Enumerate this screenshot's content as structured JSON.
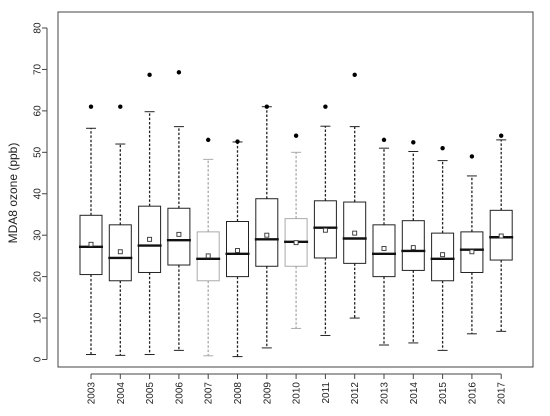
{
  "chart_data": {
    "type": "box",
    "ylabel": "MDA8 ozone (ppb)",
    "xlabel": "",
    "ylim": [
      0,
      80
    ],
    "yticks": [
      0,
      10,
      20,
      30,
      40,
      50,
      60,
      70,
      80
    ],
    "grid": false,
    "box_colors": {
      "default": "#222222",
      "light": "#aaaaaa"
    },
    "categories": [
      "2003",
      "2004",
      "2005",
      "2006",
      "2007",
      "2008",
      "2009",
      "2010",
      "2011",
      "2012",
      "2013",
      "2014",
      "2015",
      "2016",
      "2017"
    ],
    "boxes": [
      {
        "year": "2003",
        "whisker_low": 1.2,
        "q1": 20.5,
        "median": 27.2,
        "q3": 34.8,
        "whisker_high": 55.8,
        "mean": 27.8,
        "outliers": [
          61.0
        ],
        "light": false
      },
      {
        "year": "2004",
        "whisker_low": 1.0,
        "q1": 19.0,
        "median": 24.5,
        "q3": 32.5,
        "whisker_high": 52.0,
        "mean": 26.0,
        "outliers": [
          61.0
        ],
        "light": false
      },
      {
        "year": "2005",
        "whisker_low": 1.2,
        "q1": 21.0,
        "median": 27.5,
        "q3": 37.0,
        "whisker_high": 59.8,
        "mean": 29.0,
        "outliers": [
          68.7
        ],
        "light": false
      },
      {
        "year": "2006",
        "whisker_low": 2.2,
        "q1": 22.8,
        "median": 28.8,
        "q3": 36.5,
        "whisker_high": 56.2,
        "mean": 30.2,
        "outliers": [
          69.3
        ],
        "light": false
      },
      {
        "year": "2007",
        "whisker_low": 0.9,
        "q1": 19.0,
        "median": 24.3,
        "q3": 30.8,
        "whisker_high": 48.3,
        "mean": 25.0,
        "outliers": [
          53.0
        ],
        "light": true
      },
      {
        "year": "2008",
        "whisker_low": 0.7,
        "q1": 20.0,
        "median": 25.5,
        "q3": 33.3,
        "whisker_high": 52.5,
        "mean": 26.3,
        "outliers": [
          52.6
        ],
        "light": false
      },
      {
        "year": "2009",
        "whisker_low": 2.8,
        "q1": 22.5,
        "median": 29.0,
        "q3": 38.8,
        "whisker_high": 61.0,
        "mean": 30.0,
        "outliers": [
          61.0
        ],
        "light": false
      },
      {
        "year": "2010",
        "whisker_low": 7.5,
        "q1": 22.5,
        "median": 28.4,
        "q3": 34.0,
        "whisker_high": 50.0,
        "mean": 28.2,
        "outliers": [
          54.0
        ],
        "light": true
      },
      {
        "year": "2011",
        "whisker_low": 5.8,
        "q1": 24.5,
        "median": 31.8,
        "q3": 38.3,
        "whisker_high": 56.3,
        "mean": 31.2,
        "outliers": [
          61.0
        ],
        "light": false
      },
      {
        "year": "2012",
        "whisker_low": 10.0,
        "q1": 23.2,
        "median": 29.2,
        "q3": 38.0,
        "whisker_high": 56.2,
        "mean": 30.5,
        "outliers": [
          68.7
        ],
        "light": false
      },
      {
        "year": "2013",
        "whisker_low": 3.5,
        "q1": 20.0,
        "median": 25.5,
        "q3": 32.5,
        "whisker_high": 51.0,
        "mean": 26.8,
        "outliers": [
          53.0
        ],
        "light": false
      },
      {
        "year": "2014",
        "whisker_low": 4.0,
        "q1": 21.5,
        "median": 26.2,
        "q3": 33.5,
        "whisker_high": 50.2,
        "mean": 27.0,
        "outliers": [
          52.4
        ],
        "light": false
      },
      {
        "year": "2015",
        "whisker_low": 2.2,
        "q1": 19.0,
        "median": 24.3,
        "q3": 30.5,
        "whisker_high": 48.0,
        "mean": 25.3,
        "outliers": [
          51.0
        ],
        "light": false
      },
      {
        "year": "2016",
        "whisker_low": 6.2,
        "q1": 21.0,
        "median": 26.5,
        "q3": 30.8,
        "whisker_high": 44.3,
        "mean": 26.0,
        "outliers": [
          49.0
        ],
        "light": false
      },
      {
        "year": "2017",
        "whisker_low": 6.8,
        "q1": 24.0,
        "median": 29.5,
        "q3": 36.0,
        "whisker_high": 53.0,
        "mean": 29.8,
        "outliers": [
          54.0
        ],
        "light": false
      }
    ]
  }
}
